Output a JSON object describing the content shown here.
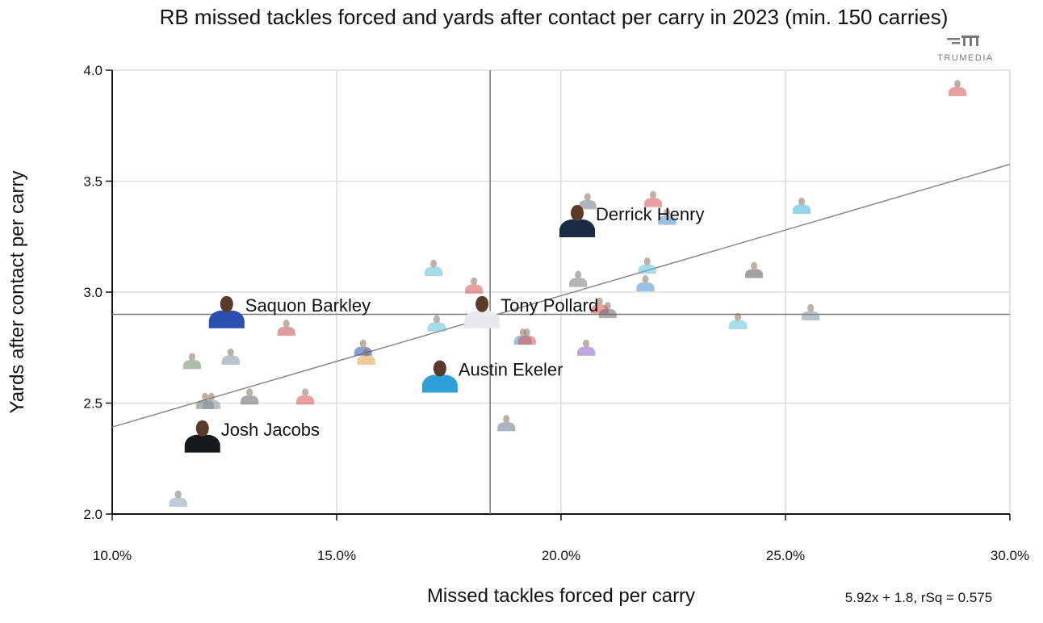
{
  "chart_data": {
    "type": "scatter",
    "title": "RB missed tackles forced and yards after contact per carry in 2023 (min. 150 carries)",
    "xlabel": "Missed tackles forced per carry",
    "ylabel": "Yards after contact per carry",
    "xlim": [
      10,
      30
    ],
    "ylim": [
      2.0,
      4.0
    ],
    "x_ticks": [
      "10.0%",
      "15.0%",
      "20.0%",
      "25.0%",
      "30.0%"
    ],
    "x_tick_values": [
      10,
      15,
      20,
      25,
      30
    ],
    "y_ticks": [
      "2.0",
      "2.5",
      "3.0",
      "3.5",
      "4.0"
    ],
    "y_tick_values": [
      2.0,
      2.5,
      3.0,
      3.5,
      4.0
    ],
    "grid": true,
    "reference_lines": {
      "x_median": 18.42,
      "y_median": 2.9
    },
    "regression": {
      "slope": 5.92,
      "intercept": 1.8,
      "label": "5.92x + 1.8, rSq = 0.575"
    },
    "watermark": "TRUMEDIA",
    "points": [
      {
        "x": 20.36,
        "y": 3.32,
        "label": "Derrick Henry",
        "jersey": "#1b2a44"
      },
      {
        "x": 12.55,
        "y": 2.91,
        "label": "Saquon Barkley",
        "jersey": "#2b4fb0"
      },
      {
        "x": 18.24,
        "y": 2.91,
        "label": "Tony Pollard",
        "jersey": "#e8e8ee"
      },
      {
        "x": 17.3,
        "y": 2.62,
        "label": "Austin Ekeler",
        "jersey": "#2e9fd8"
      },
      {
        "x": 12.01,
        "y": 2.35,
        "label": "Josh Jacobs",
        "jersey": "#15181d"
      },
      {
        "x": 28.83,
        "y": 3.92,
        "jersey": "#d9534f"
      },
      {
        "x": 25.36,
        "y": 3.39,
        "jersey": "#35b6e0"
      },
      {
        "x": 20.59,
        "y": 3.41,
        "jersey": "#6b7a8a"
      },
      {
        "x": 22.05,
        "y": 3.42,
        "jersey": "#d9534f"
      },
      {
        "x": 22.36,
        "y": 3.34,
        "jersey": "#4a90d0"
      },
      {
        "x": 17.16,
        "y": 3.11,
        "jersey": "#5bc0de"
      },
      {
        "x": 18.06,
        "y": 3.03,
        "jersey": "#d9534f"
      },
      {
        "x": 20.38,
        "y": 3.06,
        "jersey": "#777777"
      },
      {
        "x": 21.92,
        "y": 3.12,
        "jersey": "#5bc0de"
      },
      {
        "x": 21.88,
        "y": 3.04,
        "jersey": "#4a90d0"
      },
      {
        "x": 24.3,
        "y": 3.1,
        "jersey": "#555555"
      },
      {
        "x": 13.88,
        "y": 2.84,
        "jersey": "#c0504d"
      },
      {
        "x": 17.23,
        "y": 2.86,
        "jersey": "#5bc0de"
      },
      {
        "x": 20.86,
        "y": 2.94,
        "jersey": "#d9534f"
      },
      {
        "x": 21.04,
        "y": 2.92,
        "jersey": "#666666"
      },
      {
        "x": 23.94,
        "y": 2.87,
        "jersey": "#5bc0de"
      },
      {
        "x": 25.56,
        "y": 2.91,
        "jersey": "#8090a0"
      },
      {
        "x": 19.15,
        "y": 2.8,
        "jersey": "#4a90d0"
      },
      {
        "x": 19.24,
        "y": 2.8,
        "jersey": "#d9534f"
      },
      {
        "x": 20.56,
        "y": 2.75,
        "jersey": "#8e5cc4"
      },
      {
        "x": 15.59,
        "y": 2.75,
        "jersey": "#2b4fb0"
      },
      {
        "x": 15.66,
        "y": 2.71,
        "jersey": "#e8a040"
      },
      {
        "x": 11.78,
        "y": 2.69,
        "jersey": "#6b8a6b"
      },
      {
        "x": 12.64,
        "y": 2.71,
        "jersey": "#8090a0"
      },
      {
        "x": 13.06,
        "y": 2.53,
        "jersey": "#666666"
      },
      {
        "x": 14.3,
        "y": 2.53,
        "jersey": "#d9534f"
      },
      {
        "x": 12.07,
        "y": 2.51,
        "jersey": "#777777"
      },
      {
        "x": 12.21,
        "y": 2.51,
        "jersey": "#8090a0"
      },
      {
        "x": 18.78,
        "y": 2.41,
        "jersey": "#6b7a8a"
      },
      {
        "x": 11.47,
        "y": 2.07,
        "jersey": "#8aa0b8"
      }
    ]
  }
}
